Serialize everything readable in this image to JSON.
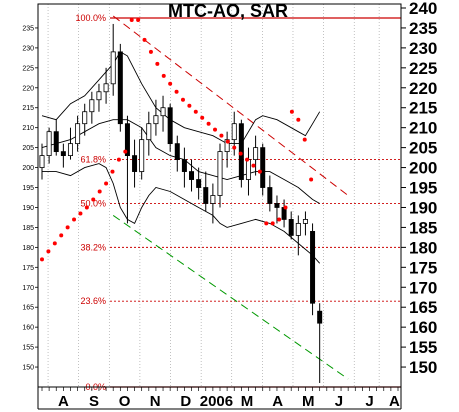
{
  "chart_data": {
    "type": "candlestick",
    "title": "MTC-AO, SAR",
    "y_axis": {
      "ticks": [
        150,
        155,
        160,
        165,
        170,
        175,
        180,
        185,
        190,
        195,
        200,
        205,
        210,
        215,
        220,
        225,
        230,
        235,
        240
      ],
      "tick_labels": [
        "150",
        "155",
        "160",
        "165",
        "170",
        "175",
        "180",
        "185",
        "190",
        "195",
        "200",
        "205",
        "210",
        "215",
        "220",
        "225",
        "230",
        "235",
        "240"
      ],
      "ylim": [
        145,
        241
      ],
      "side": "right"
    },
    "left_axis": {
      "ticks": [
        150,
        155,
        160,
        165,
        170,
        175,
        180,
        185,
        190,
        195,
        200,
        205,
        210,
        215,
        220,
        225,
        230,
        235
      ],
      "tick_labels": [
        "150",
        "155",
        "160",
        "165",
        "170",
        "175",
        "180",
        "185",
        "190",
        "195",
        "200",
        "205",
        "210",
        "215",
        "220",
        "225",
        "230",
        "235"
      ]
    },
    "x_axis": {
      "labels": [
        "A",
        "S",
        "O",
        "N",
        "D",
        "2006",
        "M",
        "A",
        "M",
        "J",
        "J",
        "A"
      ],
      "label_positions": [
        3.0,
        7.3,
        11.6,
        15.9,
        20.2,
        24.5,
        28.8,
        33.1,
        37.4,
        41.7,
        46.0,
        49.5
      ],
      "xlim": [
        0,
        50
      ]
    },
    "fibonacci": {
      "levels": [
        {
          "label": "100.0%",
          "value": 237.5
        },
        {
          "label": "61.8%",
          "value": 202
        },
        {
          "label": "50.0%",
          "value": 191
        },
        {
          "label": "38.2%",
          "value": 180
        },
        {
          "label": "23.6%",
          "value": 166.5
        },
        {
          "label": "0.0%",
          "value": 145
        }
      ],
      "color": "#cc0000"
    },
    "trendlines": [
      {
        "color": "#cc0000",
        "style": "dashed",
        "x": [
          10,
          43
        ],
        "y": [
          238,
          193
        ]
      },
      {
        "color": "#009900",
        "style": "dashed",
        "x": [
          10,
          43
        ],
        "y": [
          188,
          147
        ]
      }
    ],
    "bands": {
      "color": "#000000",
      "upper": [
        [
          0,
          213
        ],
        [
          2,
          212
        ],
        [
          4,
          216
        ],
        [
          6,
          218
        ],
        [
          8,
          222
        ],
        [
          10,
          226
        ],
        [
          11,
          229
        ],
        [
          12,
          228
        ],
        [
          14,
          221
        ],
        [
          16,
          215
        ],
        [
          18,
          212
        ],
        [
          20,
          210
        ],
        [
          22,
          209
        ],
        [
          24,
          208
        ],
        [
          26,
          206
        ],
        [
          28,
          206
        ],
        [
          30,
          212
        ],
        [
          31,
          213
        ],
        [
          33,
          212
        ],
        [
          35,
          210
        ],
        [
          36,
          209
        ],
        [
          37,
          208
        ],
        [
          38,
          211
        ],
        [
          39,
          214
        ]
      ],
      "middle": [
        [
          0,
          205
        ],
        [
          2,
          206
        ],
        [
          4,
          207
        ],
        [
          6,
          209
        ],
        [
          8,
          211
        ],
        [
          10,
          212
        ],
        [
          12,
          212
        ],
        [
          14,
          210
        ],
        [
          16,
          205
        ],
        [
          18,
          203
        ],
        [
          20,
          202
        ],
        [
          22,
          199
        ],
        [
          24,
          198
        ],
        [
          26,
          197
        ],
        [
          28,
          198
        ],
        [
          30,
          199
        ],
        [
          32,
          199
        ],
        [
          34,
          197
        ],
        [
          36,
          195
        ],
        [
          38,
          192
        ],
        [
          39,
          191
        ]
      ],
      "lower": [
        [
          0,
          199
        ],
        [
          2,
          199
        ],
        [
          4,
          198
        ],
        [
          6,
          200
        ],
        [
          8,
          201
        ],
        [
          9,
          200
        ],
        [
          10,
          196
        ],
        [
          11,
          190
        ],
        [
          12,
          187
        ],
        [
          13,
          186
        ],
        [
          14,
          190
        ],
        [
          15,
          193
        ],
        [
          16,
          195
        ],
        [
          18,
          194
        ],
        [
          20,
          192
        ],
        [
          22,
          190
        ],
        [
          24,
          188
        ],
        [
          25,
          186
        ],
        [
          26,
          185
        ],
        [
          28,
          186
        ],
        [
          30,
          187
        ],
        [
          32,
          186
        ],
        [
          34,
          184
        ],
        [
          36,
          181
        ],
        [
          38,
          178
        ],
        [
          39,
          176
        ]
      ]
    },
    "sar": {
      "color": "#ff0000",
      "x": [
        0,
        0.9,
        1.8,
        2.7,
        3.6,
        4.5,
        5.4,
        6.3,
        7.2,
        8.1,
        9,
        9.9,
        10.8,
        11.7,
        12.6,
        13.5,
        14.4,
        15.3,
        16.2,
        17.1,
        18,
        18.9,
        19.8,
        20.7,
        21.6,
        22.5,
        23.4,
        24.3,
        25.2,
        26.1,
        27,
        27.9,
        28.8,
        29.7,
        30.6,
        31.5,
        32.4,
        33.3,
        34.2,
        35.1,
        36,
        36.9,
        37.8
      ],
      "y": [
        177,
        179,
        181,
        183,
        185,
        187,
        188.5,
        190,
        192,
        194,
        196,
        199,
        202,
        204,
        237,
        237,
        232,
        229,
        226,
        223,
        221,
        219,
        217,
        215.5,
        214,
        212.5,
        211,
        209.5,
        208,
        206.5,
        205,
        203.5,
        202,
        200.5,
        199,
        186,
        186,
        187,
        190,
        214,
        212,
        207,
        197
      ]
    },
    "candles": [
      {
        "x": 0,
        "o": 200,
        "h": 206,
        "l": 197,
        "c": 203
      },
      {
        "x": 1,
        "o": 203,
        "h": 210,
        "l": 201,
        "c": 209
      },
      {
        "x": 2,
        "o": 209,
        "h": 212,
        "l": 203,
        "c": 204
      },
      {
        "x": 3,
        "o": 204,
        "h": 206,
        "l": 200,
        "c": 203
      },
      {
        "x": 4,
        "o": 203,
        "h": 210,
        "l": 202,
        "c": 206
      },
      {
        "x": 5,
        "o": 206,
        "h": 213,
        "l": 204,
        "c": 211
      },
      {
        "x": 6,
        "o": 211,
        "h": 216,
        "l": 208,
        "c": 214
      },
      {
        "x": 7,
        "o": 214,
        "h": 219,
        "l": 211,
        "c": 217
      },
      {
        "x": 8,
        "o": 217,
        "h": 221,
        "l": 214,
        "c": 219
      },
      {
        "x": 9,
        "o": 219,
        "h": 225,
        "l": 216,
        "c": 221
      },
      {
        "x": 10,
        "o": 221,
        "h": 236,
        "l": 218,
        "c": 229
      },
      {
        "x": 11,
        "o": 229,
        "h": 231,
        "l": 209,
        "c": 211
      },
      {
        "x": 12,
        "o": 211,
        "h": 213,
        "l": 186,
        "c": 203
      },
      {
        "x": 13,
        "o": 203,
        "h": 207,
        "l": 195,
        "c": 199
      },
      {
        "x": 14,
        "o": 199,
        "h": 210,
        "l": 197,
        "c": 207
      },
      {
        "x": 15,
        "o": 207,
        "h": 214,
        "l": 203,
        "c": 211
      },
      {
        "x": 16,
        "o": 211,
        "h": 217,
        "l": 208,
        "c": 213
      },
      {
        "x": 17,
        "o": 213,
        "h": 218,
        "l": 209,
        "c": 215
      },
      {
        "x": 18,
        "o": 215,
        "h": 216,
        "l": 204,
        "c": 206
      },
      {
        "x": 19,
        "o": 206,
        "h": 208,
        "l": 199,
        "c": 202
      },
      {
        "x": 20,
        "o": 202,
        "h": 205,
        "l": 195,
        "c": 199
      },
      {
        "x": 21,
        "o": 199,
        "h": 202,
        "l": 194,
        "c": 197
      },
      {
        "x": 22,
        "o": 197,
        "h": 200,
        "l": 192,
        "c": 195
      },
      {
        "x": 23,
        "o": 195,
        "h": 199,
        "l": 189,
        "c": 191
      },
      {
        "x": 24,
        "o": 191,
        "h": 196,
        "l": 186,
        "c": 193
      },
      {
        "x": 25,
        "o": 193,
        "h": 206,
        "l": 190,
        "c": 204
      },
      {
        "x": 26,
        "o": 204,
        "h": 209,
        "l": 200,
        "c": 207
      },
      {
        "x": 27,
        "o": 207,
        "h": 214,
        "l": 203,
        "c": 211
      },
      {
        "x": 28,
        "o": 211,
        "h": 212,
        "l": 195,
        "c": 197
      },
      {
        "x": 29,
        "o": 197,
        "h": 205,
        "l": 193,
        "c": 202
      },
      {
        "x": 30,
        "o": 202,
        "h": 208,
        "l": 198,
        "c": 205
      },
      {
        "x": 31,
        "o": 205,
        "h": 206,
        "l": 193,
        "c": 195
      },
      {
        "x": 32,
        "o": 195,
        "h": 198,
        "l": 189,
        "c": 191
      },
      {
        "x": 33,
        "o": 191,
        "h": 193,
        "l": 186,
        "c": 190
      },
      {
        "x": 34,
        "o": 190,
        "h": 192,
        "l": 185,
        "c": 187
      },
      {
        "x": 35,
        "o": 187,
        "h": 189,
        "l": 182,
        "c": 183
      },
      {
        "x": 36,
        "o": 183,
        "h": 188,
        "l": 178,
        "c": 186
      },
      {
        "x": 37,
        "o": 186,
        "h": 189,
        "l": 183,
        "c": 187
      },
      {
        "x": 38,
        "o": 184,
        "h": 186,
        "l": 163,
        "c": 166
      },
      {
        "x": 39,
        "o": 164,
        "h": 166,
        "l": 146,
        "c": 161
      }
    ]
  }
}
